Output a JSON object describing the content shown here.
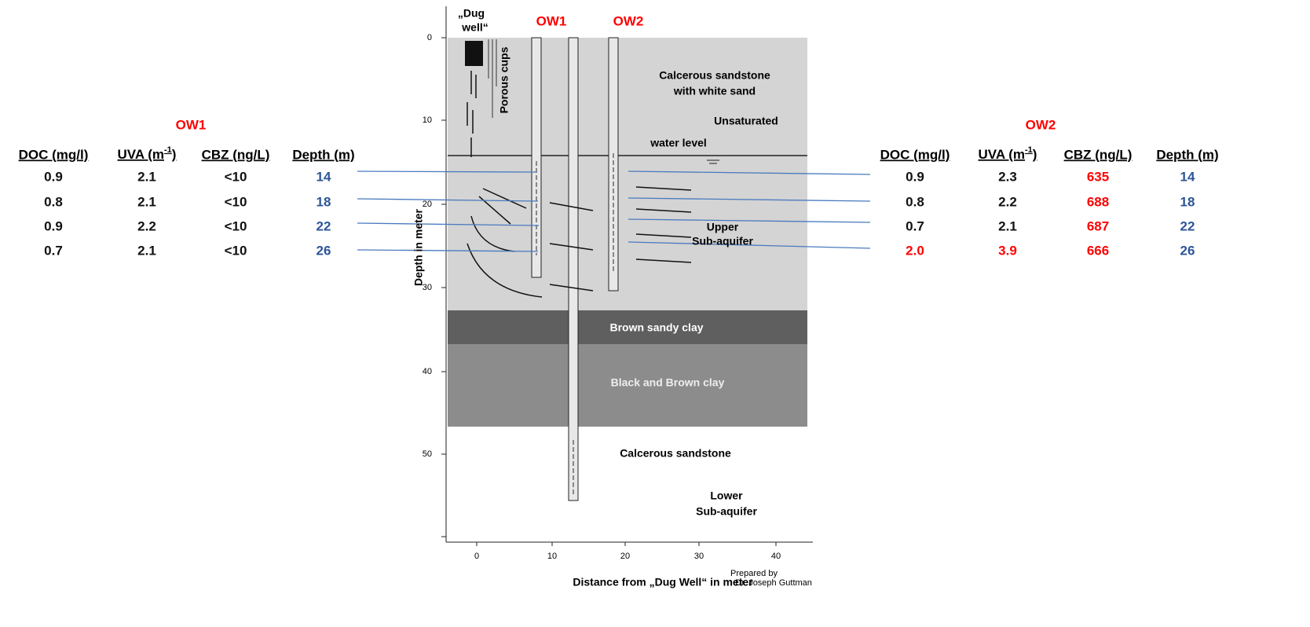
{
  "ow1_table": {
    "title": "OW1",
    "headers": [
      "DOC (mg/l)",
      {
        "base": "UVA (m",
        "sup": "-1",
        "close": ")"
      },
      "CBZ (ng/L)",
      "Depth (m)"
    ],
    "rows": [
      [
        "0.9",
        "2.1",
        "<10",
        "14"
      ],
      [
        "0.8",
        "2.1",
        "<10",
        "18"
      ],
      [
        "0.9",
        "2.2",
        "<10",
        "22"
      ],
      [
        "0.7",
        "2.1",
        "<10",
        "26"
      ]
    ]
  },
  "ow2_table": {
    "title": "OW2",
    "headers": [
      "DOC (mg/l)",
      {
        "base": "UVA (m",
        "sup": "-1",
        "close": ")"
      },
      "CBZ (ng/L)",
      "Depth (m)"
    ],
    "rows": [
      [
        "0.9",
        "2.3",
        "635",
        "14"
      ],
      [
        "0.8",
        "2.2",
        "688",
        "18"
      ],
      [
        "0.7",
        "2.1",
        "687",
        "22"
      ],
      [
        "2.0",
        "3.9",
        "666",
        "26"
      ]
    ]
  },
  "diagram": {
    "dug_well": [
      "„Dug",
      "well“"
    ],
    "well_labels": [
      "OW1",
      "OW2"
    ],
    "porous_cups": "Porous cups",
    "layers": {
      "top": [
        "Calcerous sandstone",
        "with white sand"
      ],
      "unsaturated": "Unsaturated",
      "water_level": "water level",
      "upper": [
        "Upper",
        "Sub-aquifer"
      ],
      "brown_sandy_clay": "Brown sandy clay",
      "black_brown_clay": "Black and Brown clay",
      "lower_sandstone": "Calcerous sandstone",
      "lower": [
        "Lower",
        "Sub-aquifer"
      ]
    },
    "y_axis": {
      "label": "Depth in meter",
      "ticks": [
        "0",
        "10",
        "20",
        "30",
        "40",
        "50"
      ]
    },
    "x_axis": {
      "label": "Distance from „Dug Well“ in meter",
      "ticks": [
        "0",
        "10",
        "20",
        "30",
        "40"
      ]
    },
    "credit": [
      "Prepared by",
      "Dr. Joseph Guttman"
    ]
  }
}
